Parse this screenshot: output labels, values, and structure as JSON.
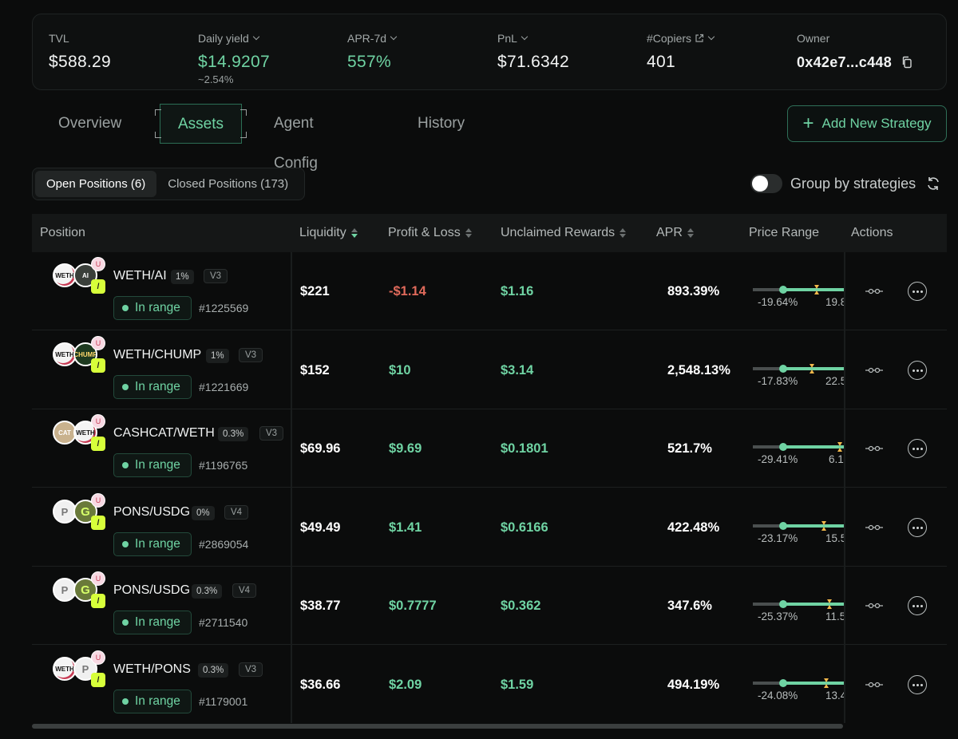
{
  "stats": {
    "tvl": {
      "label": "TVL",
      "value": "$588.29"
    },
    "daily_yield": {
      "label": "Daily yield",
      "value": "$14.9207",
      "sub": "~2.54%"
    },
    "apr7d": {
      "label": "APR-7d",
      "value": "557%"
    },
    "pnl": {
      "label": "PnL",
      "value": "$71.6342"
    },
    "copiers": {
      "label": "#Copiers",
      "value": "401"
    },
    "owner": {
      "label": "Owner",
      "value": "0x42e7...c448"
    }
  },
  "tabs": [
    "Overview",
    "Assets",
    "Agent Config",
    "History"
  ],
  "active_tab": "Assets",
  "add_button": "Add New Strategy",
  "segments": {
    "open": "Open Positions (6)",
    "closed": "Closed Positions (173)"
  },
  "group_toggle": {
    "label": "Group by strategies",
    "on": false
  },
  "columns": {
    "position": "Position",
    "liquidity": "Liquidity",
    "pnl": "Profit & Loss",
    "unclaimed": "Unclaimed Rewards",
    "apr": "APR",
    "price_range": "Price Range",
    "actions": "Actions"
  },
  "colors": {
    "accent": "#6fd3a3",
    "negative": "#e06a5b",
    "background": "#0b0c0c"
  },
  "rows": [
    {
      "pair": "WETH/AI",
      "fee": "1%",
      "version": "V3",
      "status": "In range",
      "id": "#1225569",
      "liquidity": "$221",
      "pnl": "-$1.14",
      "unclaimed": "$1.16",
      "apr": "893.39%",
      "range_low": "-19.64%",
      "range_high": "19.8",
      "tokens": [
        "WETH",
        "AI"
      ]
    },
    {
      "pair": "WETH/CHUMP",
      "fee": "1%",
      "version": "V3",
      "status": "In range",
      "id": "#1221669",
      "liquidity": "$152",
      "pnl": "$10",
      "unclaimed": "$3.14",
      "apr": "2,548.13%",
      "range_low": "-17.83%",
      "range_high": "22.5",
      "tokens": [
        "WETH",
        "CHUMP"
      ]
    },
    {
      "pair": "CASHCAT/WETH",
      "fee": "0.3%",
      "version": "V3",
      "status": "In range",
      "id": "#1196765",
      "liquidity": "$69.96",
      "pnl": "$9.69",
      "unclaimed": "$0.1801",
      "apr": "521.7%",
      "range_low": "-29.41%",
      "range_high": "6.1",
      "tokens": [
        "CASHCAT",
        "WETH"
      ]
    },
    {
      "pair": "PONS/USDG",
      "fee": "0%",
      "version": "V4",
      "status": "In range",
      "id": "#2869054",
      "liquidity": "$49.49",
      "pnl": "$1.41",
      "unclaimed": "$0.6166",
      "apr": "422.48%",
      "range_low": "-23.17%",
      "range_high": "15.5",
      "tokens": [
        "PONS",
        "USDG"
      ]
    },
    {
      "pair": "PONS/USDG",
      "fee": "0.3%",
      "version": "V4",
      "status": "In range",
      "id": "#2711540",
      "liquidity": "$38.77",
      "pnl": "$0.7777",
      "unclaimed": "$0.362",
      "apr": "347.6%",
      "range_low": "-25.37%",
      "range_high": "11.5",
      "tokens": [
        "PONS",
        "USDG"
      ]
    },
    {
      "pair": "WETH/PONS",
      "fee": "0.3%",
      "version": "V3",
      "status": "In range",
      "id": "#1179001",
      "liquidity": "$36.66",
      "pnl": "$2.09",
      "unclaimed": "$1.59",
      "apr": "494.19%",
      "range_low": "-24.08%",
      "range_high": "13.4",
      "tokens": [
        "WETH",
        "PONS"
      ]
    }
  ]
}
